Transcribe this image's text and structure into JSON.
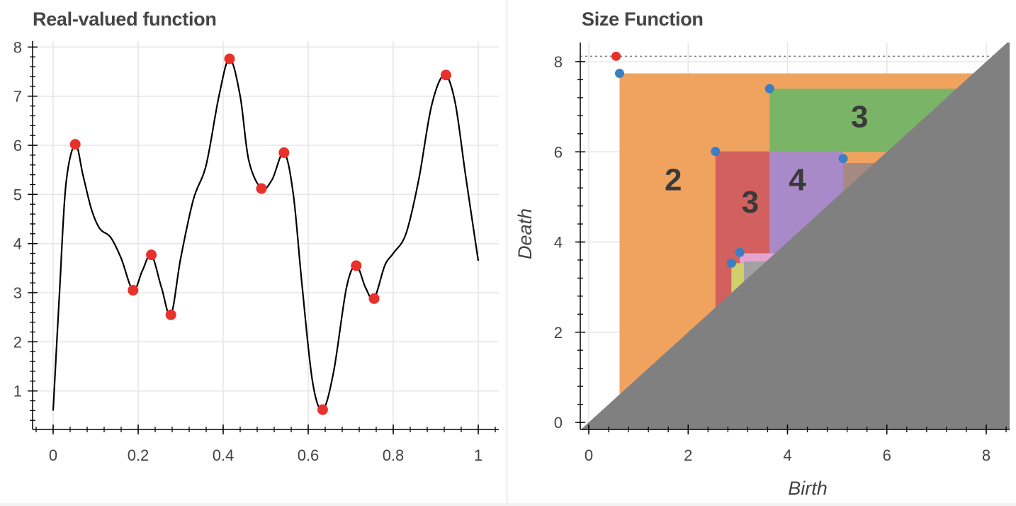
{
  "left_title": "Real-valued function",
  "right_title": "Size Function",
  "chart_data": [
    {
      "type": "line",
      "title": "Real-valued function",
      "xlim": [
        0,
        1
      ],
      "ylim": [
        0.2,
        8.1
      ],
      "x_ticks": [
        0,
        0.2,
        0.4,
        0.6,
        0.8,
        1
      ],
      "x_tick_labels": [
        "0",
        "0.2",
        "0.4",
        "0.6",
        "0.8",
        "1"
      ],
      "y_ticks": [
        1,
        2,
        3,
        4,
        5,
        6,
        7,
        8
      ],
      "y_tick_labels": [
        "1",
        "2",
        "3",
        "4",
        "5",
        "6",
        "7",
        "8"
      ],
      "grid": true,
      "line_color": "#000000",
      "marker_color": "#e8312a",
      "curve": [
        [
          0,
          0.6
        ],
        [
          0.015,
          3.0
        ],
        [
          0.03,
          5.2
        ],
        [
          0.052,
          6.02
        ],
        [
          0.07,
          5.4
        ],
        [
          0.09,
          4.7
        ],
        [
          0.11,
          4.3
        ],
        [
          0.135,
          4.13
        ],
        [
          0.16,
          3.7
        ],
        [
          0.188,
          3.05
        ],
        [
          0.21,
          3.45
        ],
        [
          0.231,
          3.77
        ],
        [
          0.255,
          3.1
        ],
        [
          0.277,
          2.55
        ],
        [
          0.3,
          3.7
        ],
        [
          0.33,
          4.9
        ],
        [
          0.36,
          5.6
        ],
        [
          0.39,
          7.0
        ],
        [
          0.415,
          7.76
        ],
        [
          0.44,
          7.0
        ],
        [
          0.46,
          5.7
        ],
        [
          0.49,
          5.12
        ],
        [
          0.515,
          5.3
        ],
        [
          0.543,
          5.85
        ],
        [
          0.565,
          5.0
        ],
        [
          0.585,
          3.2
        ],
        [
          0.61,
          1.2
        ],
        [
          0.634,
          0.62
        ],
        [
          0.66,
          1.4
        ],
        [
          0.69,
          3.1
        ],
        [
          0.713,
          3.55
        ],
        [
          0.735,
          3.1
        ],
        [
          0.755,
          2.88
        ],
        [
          0.78,
          3.55
        ],
        [
          0.8,
          3.8
        ],
        [
          0.83,
          4.2
        ],
        [
          0.86,
          5.3
        ],
        [
          0.89,
          6.8
        ],
        [
          0.92,
          7.43
        ],
        [
          0.945,
          6.9
        ],
        [
          0.97,
          5.4
        ],
        [
          1.0,
          3.65
        ]
      ],
      "extrema": [
        [
          0.052,
          6.02
        ],
        [
          0.188,
          3.05
        ],
        [
          0.231,
          3.77
        ],
        [
          0.277,
          2.55
        ],
        [
          0.415,
          7.76
        ],
        [
          0.49,
          5.12
        ],
        [
          0.543,
          5.85
        ],
        [
          0.634,
          0.62
        ],
        [
          0.713,
          3.55
        ],
        [
          0.755,
          2.88
        ],
        [
          0.924,
          7.43
        ]
      ]
    },
    {
      "type": "scatter",
      "title": "Size Function",
      "xlabel": "Birth",
      "ylabel": "Death",
      "xlim": [
        -0.1,
        8.5
      ],
      "ylim": [
        -0.15,
        8.45
      ],
      "x_ticks": [
        0,
        2,
        4,
        6,
        8
      ],
      "x_tick_labels": [
        "0",
        "2",
        "4",
        "6",
        "8"
      ],
      "y_ticks": [
        0,
        2,
        4,
        6,
        8
      ],
      "y_tick_labels": [
        "0",
        "2",
        "4",
        "6",
        "8"
      ],
      "grid": true,
      "infinity_line": 8.12,
      "diagonal_color": "#808080",
      "regions": [
        {
          "x0": 0.62,
          "y0": 0,
          "x1": 8.5,
          "y1": 7.74,
          "color": "#f0a35e"
        },
        {
          "x0": 2.55,
          "y0": 0,
          "x1": 3.64,
          "y1": 6.01,
          "color": "#d1605e"
        },
        {
          "x0": 3.64,
          "y0": 6.0,
          "x1": 8.5,
          "y1": 7.4,
          "color": "#7ab567"
        },
        {
          "x0": 3.64,
          "y0": 0,
          "x1": 5.12,
          "y1": 6.0,
          "color": "#a98ac9"
        },
        {
          "x0": 5.12,
          "y0": 0,
          "x1": 8.5,
          "y1": 5.75,
          "color": "#a68983"
        },
        {
          "x0": 3.04,
          "y0": 0,
          "x1": 3.9,
          "y1": 3.75,
          "color": "#e5a3cf"
        },
        {
          "x0": 3.12,
          "y0": 0,
          "x1": 3.9,
          "y1": 3.57,
          "color": "#a2a2a2"
        },
        {
          "x0": 2.87,
          "y0": 0,
          "x1": 3.12,
          "y1": 3.53,
          "color": "#cfd06a"
        }
      ],
      "region_labels": [
        {
          "text": "2",
          "x": 1.7,
          "y": 5.4
        },
        {
          "text": "3",
          "x": 3.25,
          "y": 4.9
        },
        {
          "text": "4",
          "x": 4.2,
          "y": 5.4
        },
        {
          "text": "3",
          "x": 5.45,
          "y": 6.8
        }
      ],
      "points": [
        {
          "birth": 0.55,
          "death": 8.12,
          "color": "#e8312a",
          "essential": true
        },
        {
          "birth": 0.62,
          "death": 7.74,
          "color": "#3a7ec4"
        },
        {
          "birth": 3.64,
          "death": 7.4,
          "color": "#3a7ec4"
        },
        {
          "birth": 2.55,
          "death": 6.01,
          "color": "#3a7ec4"
        },
        {
          "birth": 5.12,
          "death": 5.85,
          "color": "#3a7ec4"
        },
        {
          "birth": 3.04,
          "death": 3.77,
          "color": "#3a7ec4"
        },
        {
          "birth": 2.87,
          "death": 3.53,
          "color": "#3a7ec4"
        }
      ]
    }
  ]
}
